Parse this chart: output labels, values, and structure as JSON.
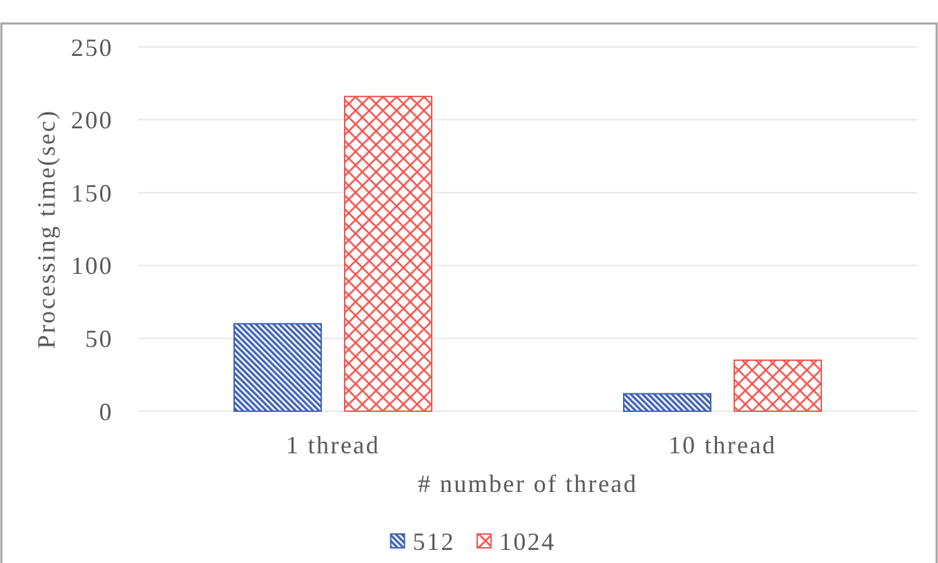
{
  "chart_data": {
    "type": "bar",
    "categories": [
      "1 thread",
      "10 thread"
    ],
    "series": [
      {
        "name": "512",
        "color": "#3f62b8",
        "values": [
          60,
          12
        ]
      },
      {
        "name": "1024",
        "color": "#f2544f",
        "values": [
          216,
          35
        ]
      }
    ],
    "xlabel": "# number of thread",
    "ylabel": "Processing time(sec)",
    "ylim": [
      0,
      250
    ],
    "yticks": [
      0,
      50,
      100,
      150,
      200,
      250
    ],
    "grid": "y",
    "legend": "bottom"
  }
}
